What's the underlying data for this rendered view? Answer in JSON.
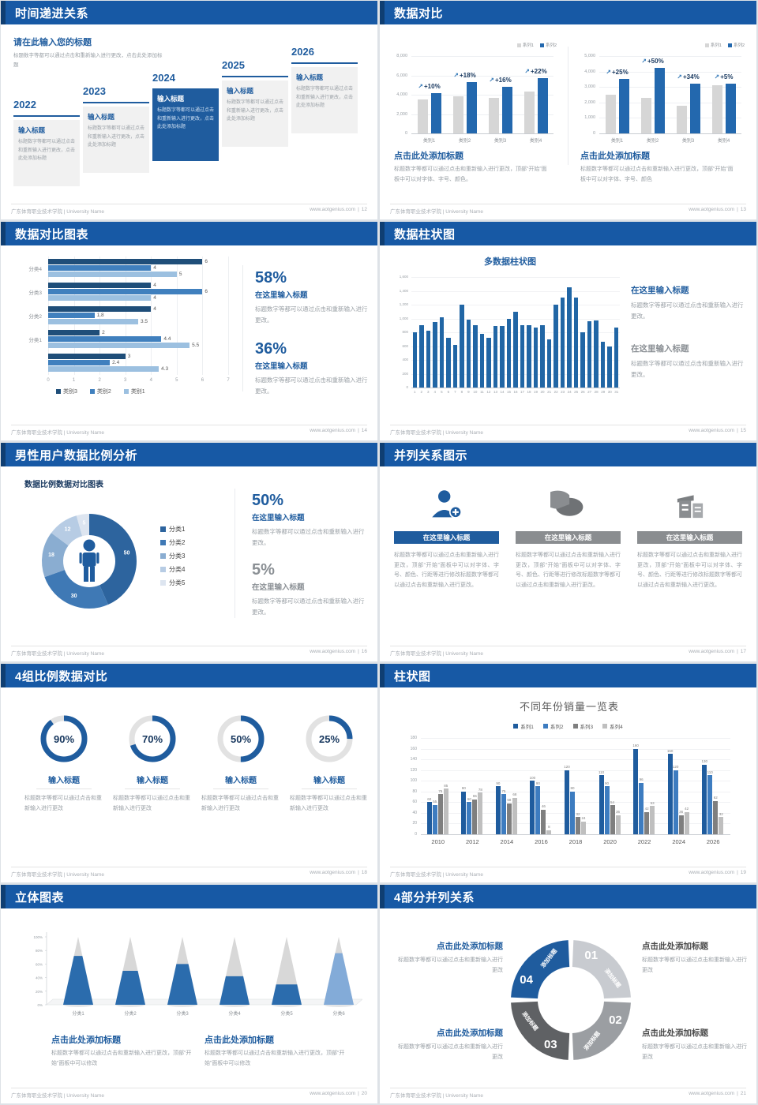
{
  "footer": {
    "left": "广东体育职业技术学院 | University Name",
    "site": "www.aotgenius.com",
    "sep": "|"
  },
  "colors": {
    "accent": "#1F5C9E",
    "header_bar": "#1759A5",
    "header_accent": "#0F3E72",
    "gray_bar": "#D6D6D6",
    "blue_bar": "#2368AE"
  },
  "slides": [
    {
      "title": "时间递进关系",
      "page": "12",
      "intro_title": "请在此输入您的标题",
      "intro_body": "标题数字等都可以通过点击和重新输入进行更改，点击此处添加标题",
      "items": [
        {
          "year": "2022",
          "heading": "输入标题",
          "body": "标题数字等都可以通过点击和重新输入进行更改，点击此处添加标题"
        },
        {
          "year": "2023",
          "heading": "输入标题",
          "body": "标题数字等都可以通过点击和重新输入进行更改，点击此处添加标题"
        },
        {
          "year": "2024",
          "heading": "输入标题",
          "body": "标题数字等都可以通过点击和重新输入进行更改，点击此处添加标题"
        },
        {
          "year": "2025",
          "heading": "输入标题",
          "body": "标题数字等都可以通过点击和重新输入进行更改，点击此处添加标题"
        },
        {
          "year": "2026",
          "heading": "输入标题",
          "body": "标题数字等都可以通过点击和重新输入进行更改，点击此处添加标题"
        }
      ]
    },
    {
      "title": "数据对比",
      "page": "13",
      "blocks": [
        {
          "heading": "点击此处添加标题",
          "body": "标题数字等都可以通过点击和重新输入进行更改，顶部“开始”面板中可以对字体、字号、颜色。"
        },
        {
          "heading": "点击此处添加标题",
          "body": "标题数字等都可以通过点击和重新输入进行更改，顶部“开始”面板中可以对字体、字号、颜色"
        }
      ]
    },
    {
      "title": "数据对比图表",
      "page": "14",
      "stats": [
        {
          "pct": "58%",
          "heading": "在这里输入标题",
          "body": "标题数字等都可以通过点击和重新输入进行更改。"
        },
        {
          "pct": "36%",
          "heading": "在这里输入标题",
          "body": "标题数字等都可以通过点击和重新输入进行更改。"
        }
      ]
    },
    {
      "title": "数据柱状图",
      "page": "15",
      "stats": [
        {
          "heading": "在这里输入标题",
          "body": "标题数字等都可以通过点击和重新输入进行更改。"
        },
        {
          "heading": "在这里输入标题",
          "body": "标题数字等都可以通过点击和重新输入进行更改。"
        }
      ]
    },
    {
      "title": "男性用户数据比例分析",
      "page": "16",
      "chart_title": "数据比例数据对比图表",
      "stats": [
        {
          "pct": "50%",
          "heading": "在这里输入标题",
          "body": "标题数字等都可以通过点击和重新输入进行更改。"
        },
        {
          "pct": "5%",
          "heading": "在这里输入标题",
          "body": "标题数字等都可以通过点击和重新输入进行更改。"
        }
      ]
    },
    {
      "title": "并列关系图示",
      "page": "17",
      "cards": [
        {
          "icon": "person-add-icon",
          "heading": "在这里输入标题",
          "body": "标题数字等都可以通过点击和重新输入进行更改，顶部“开始”面板中可以对字体、字号、颜色、行距等进行修改标题数字等都可以通过点击和重新输入进行更改。"
        },
        {
          "icon": "pie-chart-icon",
          "heading": "在这里输入标题",
          "body": "标题数字等都可以通过点击和重新输入进行更改，顶部“开始”面板中可以对字体、字号、颜色、行距等进行修改标题数字等都可以通过点击和重新输入进行更改。"
        },
        {
          "icon": "building-icon",
          "heading": "在这里输入标题",
          "body": "标题数字等都可以通过点击和重新输入进行更改，顶部“开始”面板中可以对字体、字号、颜色、行距等进行修改标题数字等都可以通过点击和重新输入进行更改。"
        }
      ]
    },
    {
      "title": "4组比例数据对比",
      "page": "18",
      "items": [
        {
          "pct_label": "90%",
          "heading": "输入标题",
          "body": "标题数字等都可以通过点击和重新输入进行更改"
        },
        {
          "pct_label": "70%",
          "heading": "输入标题",
          "body": "标题数字等都可以通过点击和重新输入进行更改"
        },
        {
          "pct_label": "50%",
          "heading": "输入标题",
          "body": "标题数字等都可以通过点击和重新输入进行更改"
        },
        {
          "pct_label": "25%",
          "heading": "输入标题",
          "body": "标题数字等都可以通过点击和重新输入进行更改"
        }
      ]
    },
    {
      "title": "柱状图",
      "page": "19"
    },
    {
      "title": "立体图表",
      "page": "20",
      "blocks": [
        {
          "heading": "点击此处添加标题",
          "body": "标题数字等都可以通过点击和重新输入进行更改，顶部“开始”面板中可以修改"
        },
        {
          "heading": "点击此处添加标题",
          "body": "标题数字等都可以通过点击和重新输入进行更改，顶部“开始”面板中可以修改"
        }
      ]
    },
    {
      "title": "4部分并列关系",
      "page": "21",
      "blocks": [
        {
          "heading": "点击此处添加标题",
          "body": "标题数字等都可以通过点击和重新输入进行更改"
        },
        {
          "heading": "点击此处添加标题",
          "body": "标题数字等都可以通过点击和重新输入进行更改"
        },
        {
          "heading": "点击此处添加标题",
          "body": "标题数字等都可以通过点击和重新输入进行更改"
        },
        {
          "heading": "点击此处添加标题",
          "body": "标题数字等都可以通过点击和重新输入进行更改"
        }
      ]
    }
  ],
  "chart_data": [
    {
      "type": "bar",
      "slide": "数据对比-左",
      "categories": [
        "类别1",
        "类别2",
        "类别3",
        "类别4"
      ],
      "series": [
        {
          "name": "系列1",
          "color": "#D6D6D6",
          "values": [
            3500,
            3800,
            3700,
            4300
          ]
        },
        {
          "name": "系列2",
          "color": "#2368AE",
          "values": [
            4200,
            5300,
            4800,
            5700
          ]
        }
      ],
      "pct_labels": [
        "+10%",
        "+18%",
        "+16%",
        "+22%"
      ],
      "ylim": [
        0,
        8000
      ],
      "ystep": 2000,
      "legend_position": "top-right",
      "grid": true
    },
    {
      "type": "bar",
      "slide": "数据对比-右",
      "categories": [
        "类别1",
        "类别2",
        "类别3",
        "类别4"
      ],
      "series": [
        {
          "name": "系列1",
          "color": "#D6D6D6",
          "values": [
            2500,
            2300,
            1800,
            3100
          ]
        },
        {
          "name": "系列2",
          "color": "#2368AE",
          "values": [
            3500,
            4250,
            3200,
            3200
          ]
        }
      ],
      "pct_labels": [
        "+25%",
        "+50%",
        "+34%",
        "+5%"
      ],
      "ylim": [
        0,
        5000
      ],
      "ystep": 1000,
      "legend_position": "top-right",
      "grid": true
    },
    {
      "type": "bar-horizontal",
      "slide": "数据对比图表",
      "groups": [
        "分类4",
        "分类3",
        "分类2",
        "分类1",
        ""
      ],
      "series": [
        {
          "name": "类别3",
          "color": "#1F4E79",
          "values": [
            6,
            4,
            4,
            2,
            3
          ]
        },
        {
          "name": "类别2",
          "color": "#4080BE",
          "values": [
            4,
            6,
            1.8,
            4.4,
            2.4
          ]
        },
        {
          "name": "类别1",
          "color": "#9CC0E0",
          "values": [
            5,
            4,
            3.5,
            5.5,
            4.3
          ]
        }
      ],
      "xlim": [
        0,
        7
      ],
      "xstep": 1,
      "data_labels": true,
      "legend_position": "bottom"
    },
    {
      "type": "bar",
      "slide": "数据柱状图",
      "title": "多数据柱状图",
      "color": "#2166A5",
      "x": [
        1,
        2,
        3,
        4,
        5,
        6,
        7,
        8,
        9,
        10,
        11,
        12,
        13,
        14,
        15,
        16,
        17,
        18,
        19,
        20,
        21,
        22,
        23,
        24,
        25,
        26,
        27,
        28,
        29,
        30,
        31
      ],
      "values": [
        800,
        900,
        820,
        950,
        1020,
        720,
        620,
        1200,
        980,
        900,
        780,
        720,
        890,
        890,
        1000,
        1100,
        900,
        900,
        870,
        900,
        700,
        1200,
        1300,
        1450,
        1300,
        800,
        960,
        970,
        660,
        600,
        870
      ],
      "ylim": [
        0,
        1600
      ],
      "ystep": 200,
      "grid": true
    },
    {
      "type": "pie",
      "slide": "男性用户数据比例分析",
      "donut": true,
      "labels": [
        "分类1",
        "分类2",
        "分类3",
        "分类4",
        "分类5"
      ],
      "values": [
        50,
        30,
        18,
        12,
        5
      ],
      "colors": [
        "#2D649E",
        "#3F79B5",
        "#8AADD1",
        "#B7CCE4",
        "#DDE5F0"
      ],
      "legend_position": "right"
    },
    {
      "type": "donut-progress",
      "slide": "4组比例数据对比",
      "values": [
        90,
        70,
        50,
        25
      ],
      "color": "#1F5C9E",
      "track_color": "#E2E2E2"
    },
    {
      "type": "bar",
      "slide": "柱状图",
      "title": "不同年份销量一览表",
      "categories": [
        "2010",
        "2012",
        "2014",
        "2016",
        "2018",
        "2020",
        "2022",
        "2024",
        "2026"
      ],
      "series": [
        {
          "name": "系列1",
          "color": "#1F5C9E",
          "values": [
            60,
            80,
            90,
            100,
            120,
            110,
            160,
            150,
            130
          ]
        },
        {
          "name": "系列2",
          "color": "#3D7CC0",
          "values": [
            55,
            60,
            75,
            90,
            80,
            90,
            96,
            120,
            110
          ]
        },
        {
          "name": "系列3",
          "color": "#7F7F7F",
          "values": [
            75,
            65,
            58,
            46,
            32,
            54,
            42,
            36,
            62
          ]
        },
        {
          "name": "系列4",
          "color": "#BFBFBF",
          "values": [
            85,
            78,
            68,
            8,
            24,
            36,
            53,
            42,
            32
          ]
        }
      ],
      "ylim": [
        0,
        180
      ],
      "ystep": 20,
      "data_labels": true,
      "legend_position": "top",
      "grid": true
    },
    {
      "type": "cone",
      "slide": "立体图表",
      "categories": [
        "分类1",
        "分类2",
        "分类3",
        "分类4",
        "分类5",
        "分类6"
      ],
      "values": [
        72,
        50,
        60,
        42,
        30,
        76
      ],
      "ylim": [
        0,
        100
      ],
      "ystep": 20,
      "colors": [
        "#2B6CAD",
        "#2B6CAD",
        "#2B6CAD",
        "#2B6CAD",
        "#2B6CAD",
        "#83ABD8"
      ],
      "top_color": "#D8D8D8"
    },
    {
      "type": "cycle-ring",
      "slide": "4部分并列关系",
      "segments": [
        {
          "num": "01",
          "label": "添加标题",
          "color": "#C8CBD0"
        },
        {
          "num": "02",
          "label": "添加标题",
          "color": "#9B9EA2"
        },
        {
          "num": "03",
          "label": "添加标题",
          "color": "#5F6164"
        },
        {
          "num": "04",
          "label": "添加标题",
          "color": "#1F5C9E"
        }
      ]
    }
  ]
}
